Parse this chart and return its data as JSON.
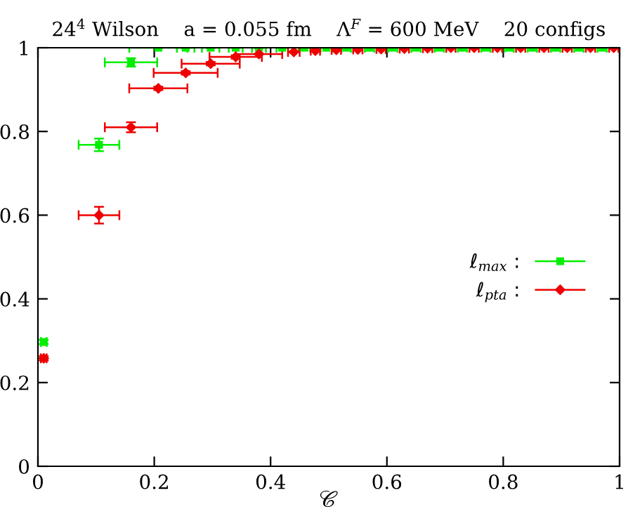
{
  "chart_data": {
    "type": "scatter",
    "title": "24$^{4}$ Wilson    a = 0.055 fm    Λ$^{F}$ = 600 MeV    20 configs",
    "xlabel": "𝒞",
    "series": [
      {
        "name": "ℓ$_{max}$ :",
        "color": "#00ee00",
        "marker": "square",
        "x": [
          0.01,
          0.105,
          0.16,
          0.207,
          0.254,
          0.297,
          0.34,
          0.38,
          0.42,
          0.458,
          0.496,
          0.53,
          0.57,
          0.61,
          0.65,
          0.69,
          0.73,
          0.77,
          0.81,
          0.85,
          0.89,
          0.93,
          0.97
        ],
        "values": [
          0.297,
          0.768,
          0.965,
          1.0,
          1.0,
          1.0,
          1.0,
          1.0,
          1.0,
          1.0,
          1.0,
          1.0,
          1.0,
          1.0,
          1.0,
          1.0,
          1.0,
          1.0,
          1.0,
          1.0,
          1.0,
          1.0,
          1.0
        ],
        "errors": [
          0.005,
          0.015,
          0.01,
          null,
          null,
          null,
          null,
          null,
          null,
          null,
          null,
          null,
          null,
          null,
          null,
          null,
          null,
          null,
          null,
          null,
          null,
          null,
          null
        ],
        "xerrors": [
          0.005,
          0.035,
          0.045,
          0.05,
          0.015,
          0.015,
          0.012,
          0.012,
          0.01,
          0.01,
          0.01,
          0.008,
          0.008,
          0.008,
          0.008,
          0.008,
          0.008,
          0.008,
          0.008,
          0.008,
          0.008,
          0.008,
          0.008
        ]
      },
      {
        "name": "ℓ$_{pta}$ :",
        "color": "#ee0000",
        "marker": "diamond",
        "x": [
          0.01,
          0.105,
          0.16,
          0.207,
          0.254,
          0.297,
          0.34,
          0.38,
          0.44,
          0.477,
          0.513,
          0.55,
          0.59,
          0.63,
          0.67,
          0.71,
          0.75,
          0.79,
          0.83,
          0.87,
          0.91,
          0.95,
          0.99
        ],
        "values": [
          0.258,
          0.6,
          0.81,
          0.903,
          0.94,
          0.962,
          0.978,
          0.985,
          0.99,
          0.993,
          0.995,
          0.996,
          0.997,
          0.998,
          0.999,
          1.0,
          1.0,
          1.0,
          1.0,
          1.0,
          1.0,
          1.0,
          1.0
        ],
        "errors": [
          0.005,
          0.02,
          0.012,
          0.004,
          0.004,
          0.004,
          0.004,
          null,
          null,
          null,
          null,
          null,
          null,
          null,
          null,
          null,
          null,
          null,
          null,
          null,
          null,
          null,
          null
        ],
        "xerrors": [
          0.005,
          0.035,
          0.045,
          0.05,
          0.055,
          0.05,
          0.045,
          0.04,
          0.01,
          0.008,
          0.008,
          0.008,
          0.008,
          0.008,
          0.008,
          0.008,
          0.008,
          0.008,
          0.008,
          0.008,
          0.008,
          0.008,
          0.008
        ]
      }
    ],
    "xlim": [
      0,
      1
    ],
    "ylim": [
      0,
      1
    ],
    "xticks": [
      0,
      0.2,
      0.4,
      0.6,
      0.8,
      1
    ],
    "yticks": [
      0,
      0.2,
      0.4,
      0.6,
      0.8,
      1
    ],
    "legend": "right",
    "grid": false
  }
}
